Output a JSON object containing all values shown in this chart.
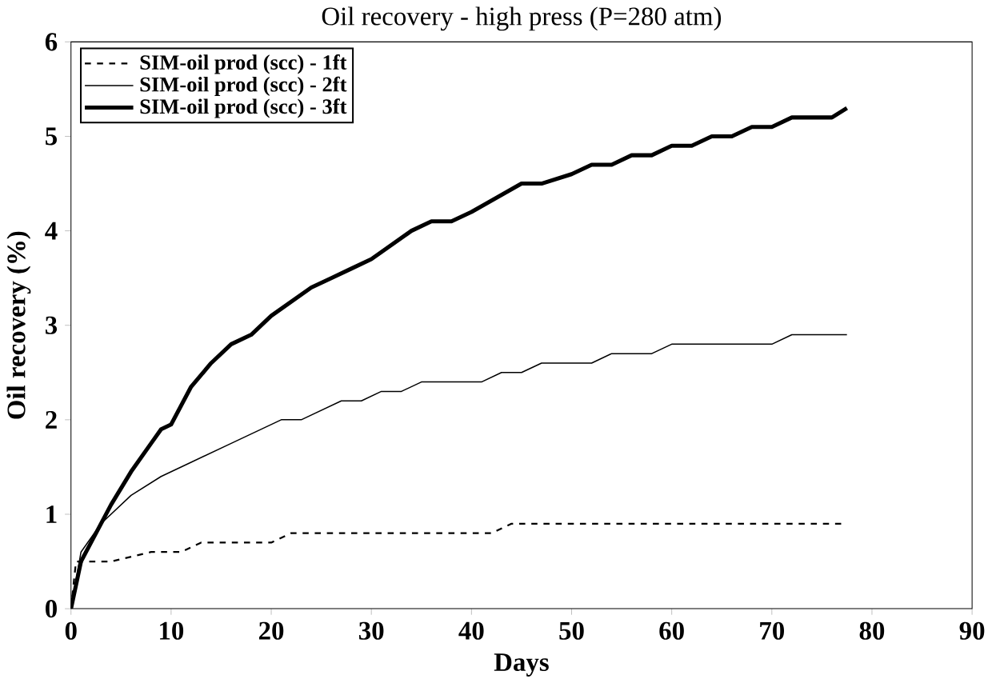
{
  "chart_data": {
    "type": "line",
    "title": "Oil recovery - high press (P=280 atm)",
    "xlabel": "Days",
    "ylabel": "Oil recovery (%)",
    "xlim": [
      0,
      90
    ],
    "xticks": [
      0,
      10,
      20,
      30,
      40,
      50,
      60,
      70,
      80,
      90
    ],
    "ylim": [
      0,
      6
    ],
    "yticks": [
      0,
      1,
      2,
      3,
      4,
      5,
      6
    ],
    "grid": false,
    "legend": "top left",
    "marker": "none",
    "series": [
      {
        "name": "SIM-oil prod (scc) - 1ft",
        "color": "#000000",
        "line_style": "dashed",
        "x": [
          0,
          0.5,
          2,
          4,
          8,
          11,
          13,
          20,
          22,
          42,
          44,
          77
        ],
        "values": [
          0,
          0.5,
          0.5,
          0.5,
          0.6,
          0.6,
          0.7,
          0.7,
          0.8,
          0.8,
          0.9,
          0.9
        ]
      },
      {
        "name": "SIM-oil prod (scc) - 2ft",
        "color": "#000000",
        "line_style": "solid",
        "x": [
          0,
          1,
          3,
          6,
          9,
          12,
          16,
          19,
          21,
          23,
          27,
          29,
          31,
          33,
          35,
          41,
          43,
          45,
          47,
          52,
          54,
          58,
          60,
          70,
          72,
          77.5
        ],
        "values": [
          0,
          0.6,
          0.9,
          1.2,
          1.4,
          1.55,
          1.75,
          1.9,
          2.0,
          2.0,
          2.2,
          2.2,
          2.3,
          2.3,
          2.4,
          2.4,
          2.5,
          2.5,
          2.6,
          2.6,
          2.7,
          2.7,
          2.8,
          2.8,
          2.9,
          2.9
        ]
      },
      {
        "name": "SIM-oil prod (scc) - 3ft",
        "color": "#000000",
        "line_style": "solid",
        "x": [
          0,
          1,
          2,
          4,
          6,
          8,
          9,
          10,
          12,
          14,
          16,
          18,
          20,
          22,
          24,
          26,
          28,
          30,
          32,
          34,
          36,
          38,
          40,
          45,
          47,
          50,
          52,
          54,
          56,
          58,
          60,
          62,
          64,
          66,
          68,
          70,
          72,
          76,
          77.5
        ],
        "values": [
          0,
          0.5,
          0.7,
          1.1,
          1.45,
          1.75,
          1.9,
          1.95,
          2.35,
          2.6,
          2.8,
          2.9,
          3.1,
          3.25,
          3.4,
          3.5,
          3.6,
          3.7,
          3.85,
          4.0,
          4.1,
          4.1,
          4.2,
          4.5,
          4.5,
          4.6,
          4.7,
          4.7,
          4.8,
          4.8,
          4.9,
          4.9,
          5.0,
          5.0,
          5.1,
          5.1,
          5.2,
          5.2,
          5.3
        ]
      }
    ]
  }
}
